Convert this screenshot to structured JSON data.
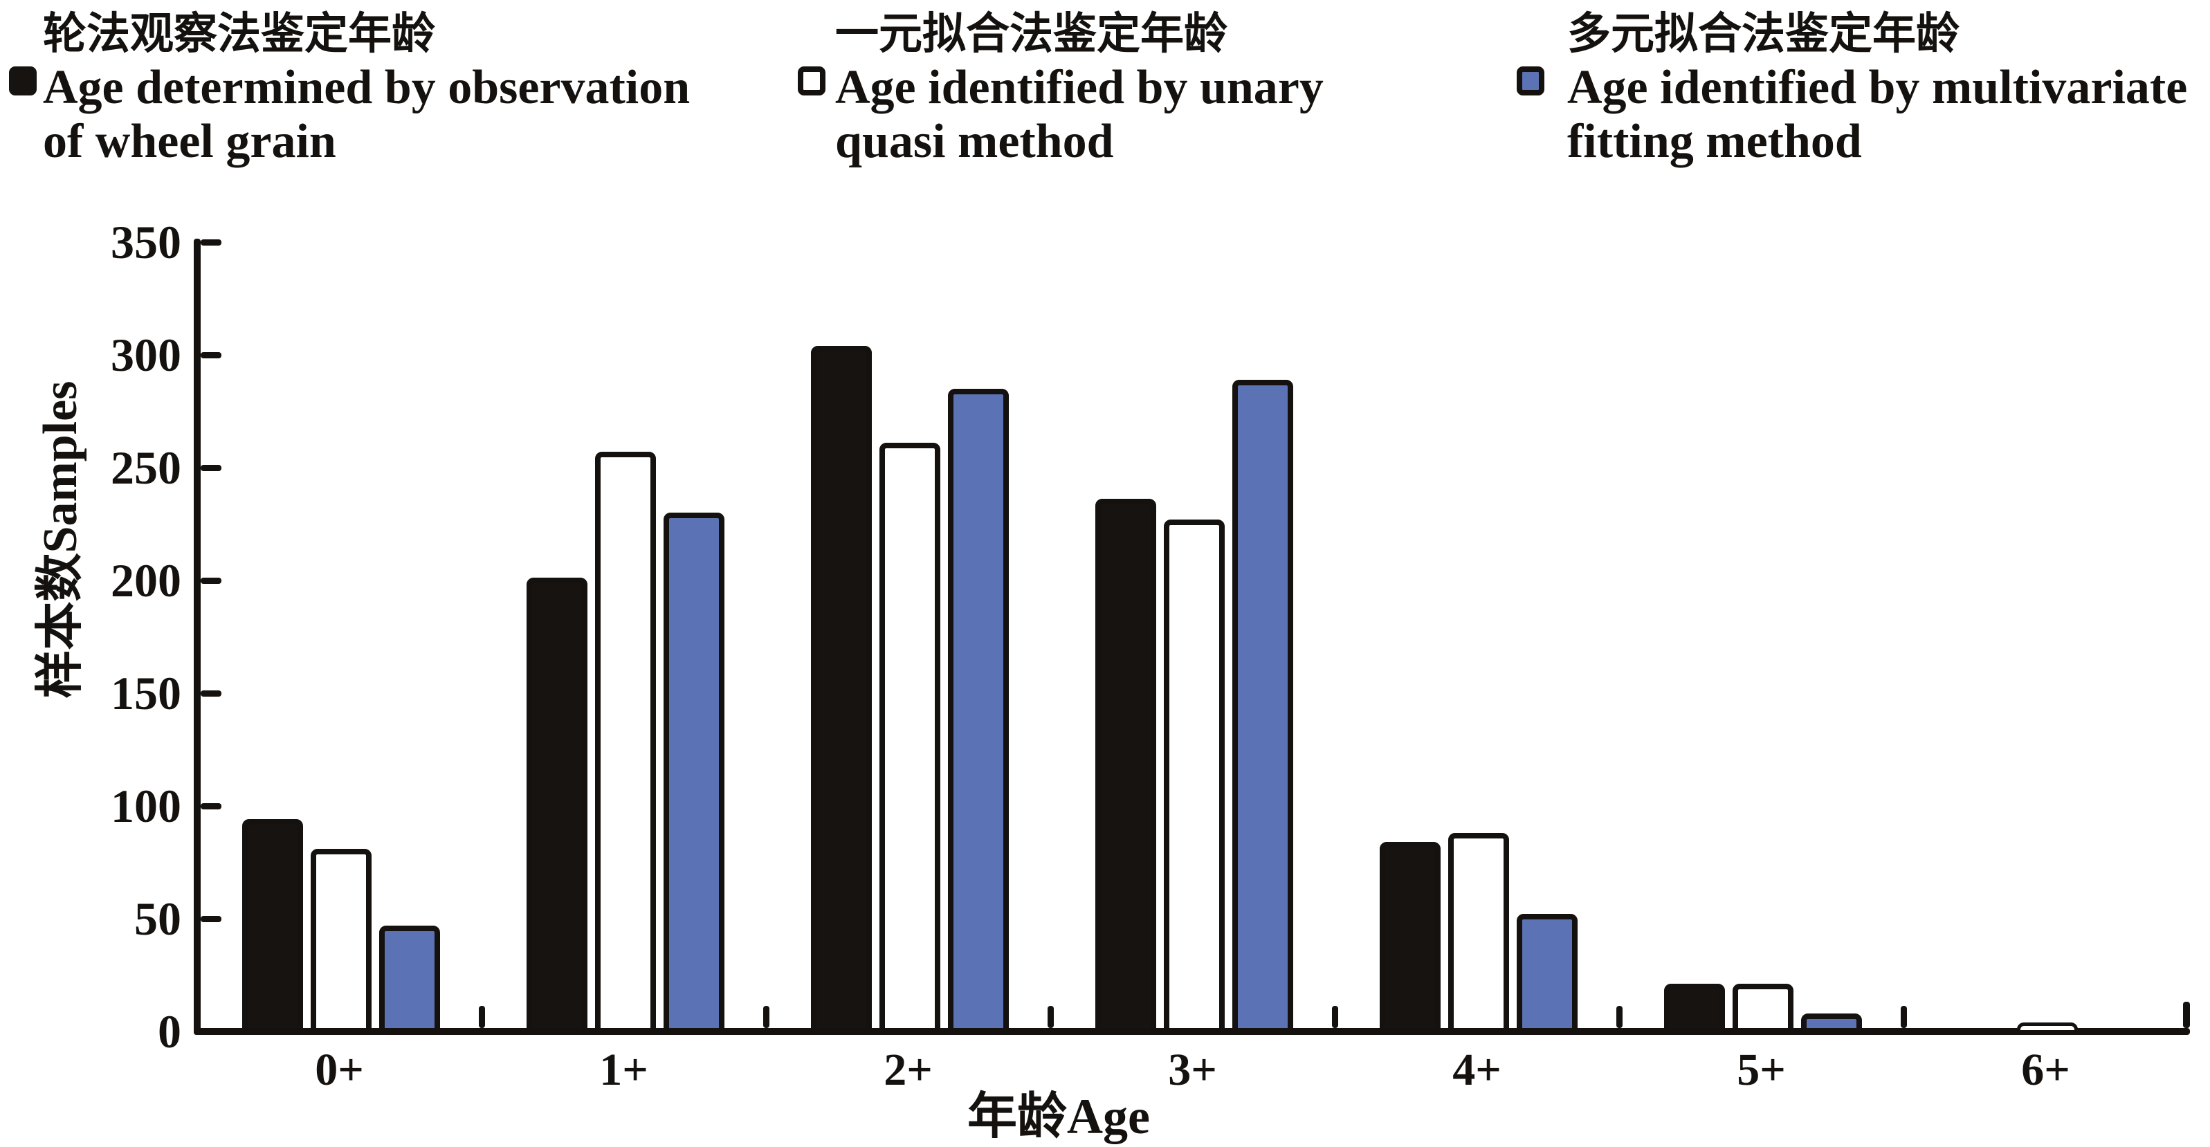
{
  "figure": {
    "background": "#ffffff",
    "ink_color": "#14110e"
  },
  "legend": {
    "items": [
      {
        "marker_icon": "black-filled-square",
        "marker_fill": "#171310",
        "marker_border": "#171310",
        "label_cn": "轮法观察法鉴定年龄",
        "label_en_line1": "Age determined by observation",
        "label_en_line2": "of wheel grain"
      },
      {
        "marker_icon": "white-outlined-square",
        "marker_fill": "#ffffff",
        "marker_border": "#14110e",
        "label_cn": "一元拟合法鉴定年龄",
        "label_en_line1": "Age identified by unary",
        "label_en_line2": "quasi method"
      },
      {
        "marker_icon": "blue-outlined-square",
        "marker_fill": "#5b72b4",
        "marker_border": "#14110e",
        "label_cn": "多元拟合法鉴定年龄",
        "label_en_line1": "Age identified by multivariate",
        "label_en_line2": "fitting method"
      }
    ]
  },
  "chart_data": {
    "type": "bar",
    "categories": [
      "0+",
      "1+",
      "2+",
      "3+",
      "4+",
      "5+",
      "6+"
    ],
    "series": [
      {
        "name": "轮法观察法鉴定年龄 Age determined by observation of wheel grain",
        "color": "#171310",
        "values": [
          95,
          202,
          305,
          237,
          85,
          22,
          2
        ]
      },
      {
        "name": "一元拟合法鉴定年龄 Age identified by unary quasi method",
        "color": "#ffffff",
        "values": [
          82,
          258,
          262,
          228,
          89,
          22,
          5
        ]
      },
      {
        "name": "多元拟合法鉴定年龄 Age identified by multivariate fitting method",
        "color": "#5b72b4",
        "values": [
          48,
          231,
          286,
          290,
          53,
          9,
          2
        ]
      }
    ],
    "title": "",
    "xlabel": "年龄Age",
    "ylabel": "样本数Samples",
    "ylim": [
      0,
      350
    ],
    "yticks": [
      0,
      50,
      100,
      150,
      200,
      250,
      300,
      350
    ],
    "grid": false,
    "legend_position": "top"
  }
}
